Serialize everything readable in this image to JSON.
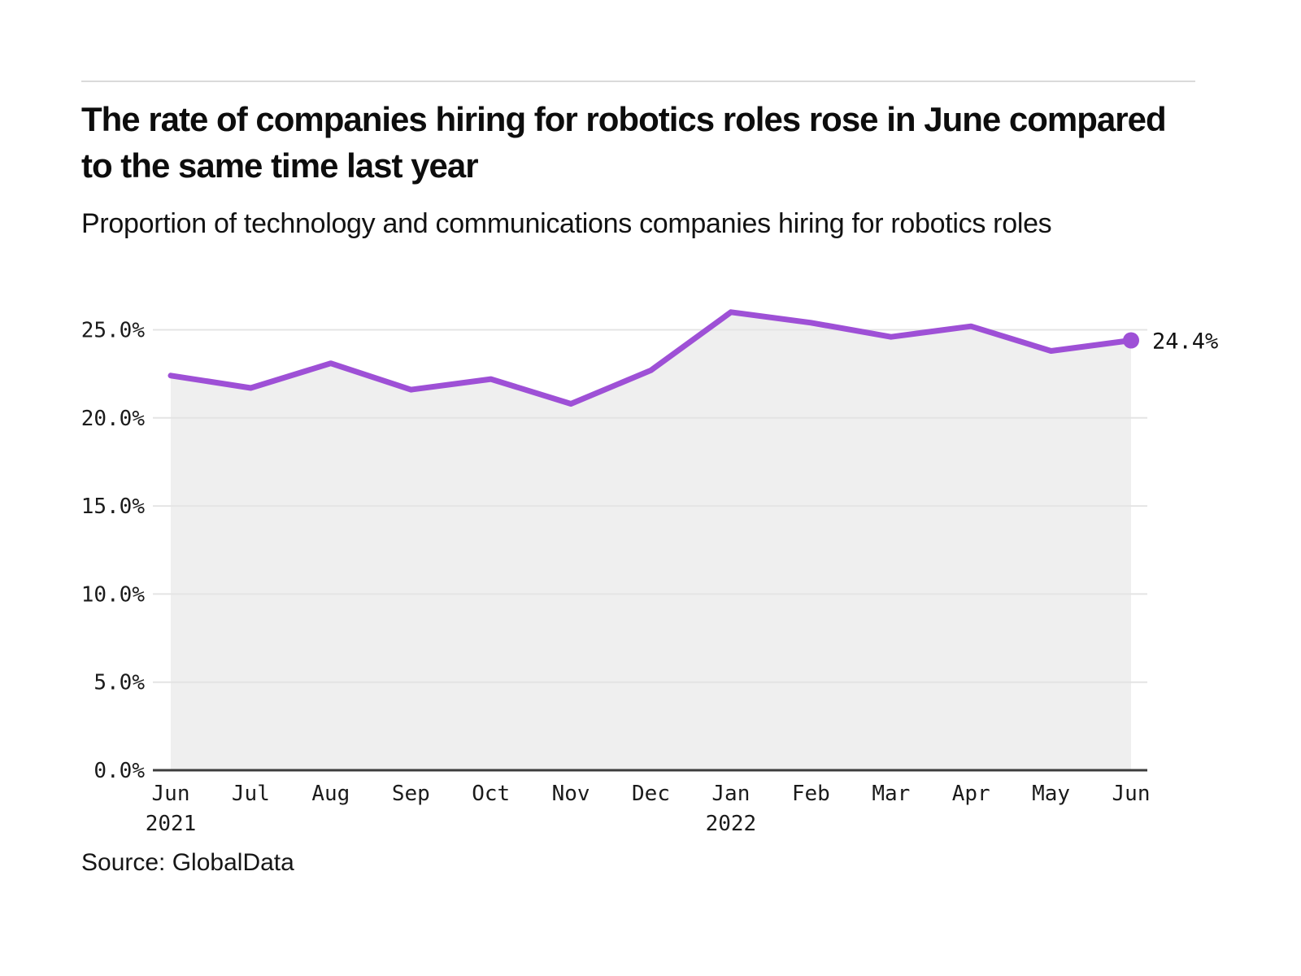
{
  "chart_data": {
    "type": "line",
    "title": "The rate of companies hiring for robotics roles rose in June compared to the same time last year",
    "subtitle": "Proportion of technology and communications companies hiring for robotics roles",
    "source": "Source: GlobalData",
    "categories": [
      "Jun",
      "Jul",
      "Aug",
      "Sep",
      "Oct",
      "Nov",
      "Dec",
      "Jan",
      "Feb",
      "Mar",
      "Apr",
      "May",
      "Jun"
    ],
    "category_years": [
      {
        "index": 0,
        "label": "2021"
      },
      {
        "index": 7,
        "label": "2022"
      }
    ],
    "series": [
      {
        "name": "Proportion of technology and communications companies hiring for robotics roles",
        "values": [
          22.4,
          21.7,
          23.1,
          21.6,
          22.2,
          20.8,
          22.7,
          26.0,
          25.4,
          24.6,
          25.2,
          23.8,
          24.4
        ]
      }
    ],
    "unit": "%",
    "ytick_labels": [
      "0.0%",
      "5.0%",
      "10.0%",
      "15.0%",
      "20.0%",
      "25.0%"
    ],
    "ylim": [
      0,
      25
    ],
    "y_gridline_step": 5,
    "grid": true,
    "legend": "none",
    "end_point_label": "24.4%",
    "colors": {
      "line": "#9e50d6",
      "area_fill": "#efefef",
      "grid": "#e4e4e4",
      "axis": "#3d3d3d",
      "text": "#1b1b1b"
    }
  }
}
